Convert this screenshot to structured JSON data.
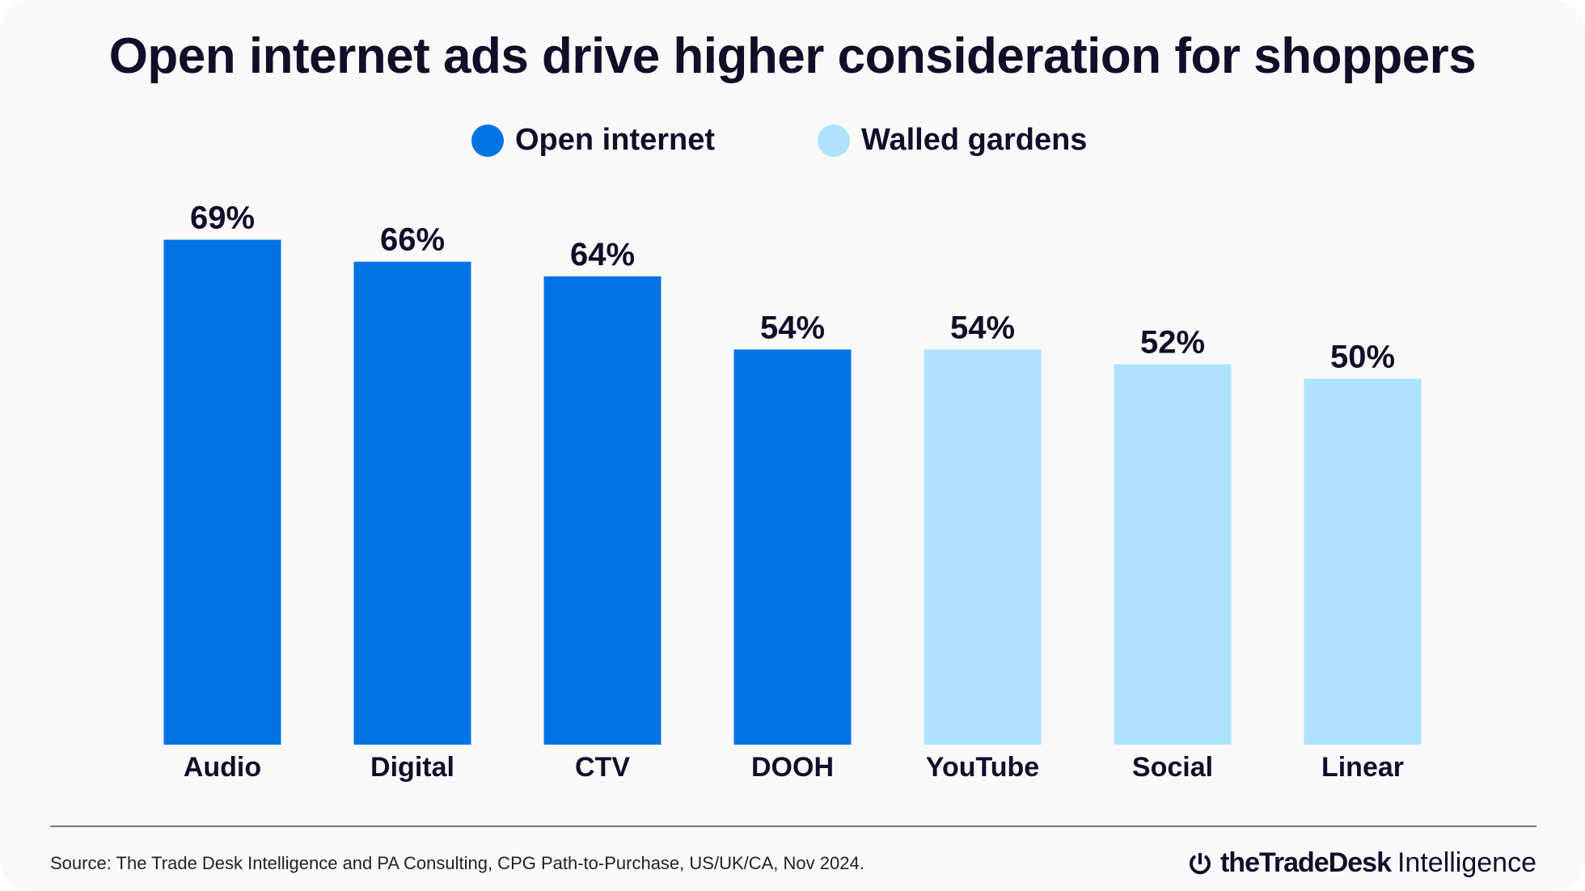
{
  "chart_data": {
    "type": "bar",
    "title": "Open internet ads drive higher consideration for shoppers",
    "categories": [
      "Audio",
      "Digital",
      "CTV",
      "DOOH",
      "YouTube",
      "Social",
      "Linear"
    ],
    "values": [
      69,
      66,
      64,
      54,
      54,
      52,
      50
    ],
    "value_labels": [
      "69%",
      "66%",
      "64%",
      "54%",
      "54%",
      "52%",
      "50%"
    ],
    "series_membership": [
      "Open internet",
      "Open internet",
      "Open internet",
      "Open internet",
      "Walled gardens",
      "Walled gardens",
      "Walled gardens"
    ],
    "legend": [
      {
        "name": "Open internet",
        "color": "#0373E3"
      },
      {
        "name": "Walled gardens",
        "color": "#AEE3FD"
      }
    ],
    "legend_position": "top",
    "ylim": [
      0,
      100
    ],
    "grid": false,
    "xlabel": "",
    "ylabel": ""
  },
  "footer": {
    "source": "Source: The Trade Desk Intelligence and PA Consulting, CPG Path-to-Purchase, US/UK/CA, Nov 2024.",
    "logo_brand": "theTradeDesk",
    "logo_suffix": "Intelligence"
  },
  "colors": {
    "text": "#0f0f2a",
    "background": "#f9f9f9"
  }
}
